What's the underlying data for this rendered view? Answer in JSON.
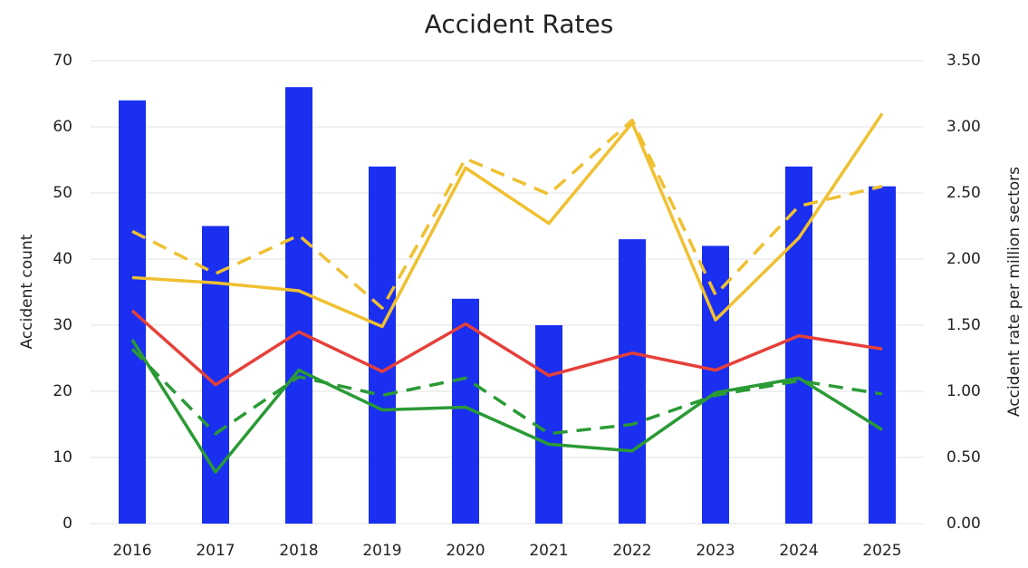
{
  "chart_data": {
    "type": "bar-line",
    "title": "Accident Rates",
    "y_label": "Accident count",
    "y2_label": "Accident rate per million sectors",
    "categories": [
      "2016",
      "2017",
      "2018",
      "2019",
      "2020",
      "2021",
      "2022",
      "2023",
      "2024",
      "2025"
    ],
    "ylim": [
      0,
      70
    ],
    "yticks": [
      0,
      10,
      20,
      30,
      40,
      50,
      60,
      70
    ],
    "y2lim": [
      0,
      3.5
    ],
    "y2ticks": [
      {
        "value": 0,
        "label": "0.00"
      },
      {
        "value": 0.5,
        "label": "0.50"
      },
      {
        "value": 1,
        "label": "1.00"
      },
      {
        "value": 1.5,
        "label": "1.50"
      },
      {
        "value": 2,
        "label": "2.00"
      },
      {
        "value": 2.5,
        "label": "2.50"
      },
      {
        "value": 3,
        "label": "3.00"
      },
      {
        "value": 3.5,
        "label": "3.50"
      }
    ],
    "grid": true,
    "series": [
      {
        "type": "bar",
        "color": "#1a2ff0",
        "values": [
          64,
          45,
          66,
          54,
          34,
          30,
          43,
          42,
          54,
          51
        ]
      },
      {
        "type": "line",
        "axis": "y2",
        "color": "#f0c030",
        "dashed": false,
        "values": [
          1.86,
          1.82,
          1.76,
          1.49,
          2.69,
          2.27,
          3.03,
          1.54,
          2.16,
          3.1
        ]
      },
      {
        "type": "line",
        "axis": "y2",
        "color": "#f0c030",
        "dashed": true,
        "values": [
          2.21,
          1.89,
          2.18,
          1.63,
          2.76,
          2.49,
          3.05,
          1.73,
          2.4,
          2.55
        ]
      },
      {
        "type": "line",
        "axis": "y2",
        "color": "#e5403a",
        "dashed": false,
        "values": [
          1.61,
          1.05,
          1.45,
          1.15,
          1.51,
          1.12,
          1.29,
          1.16,
          1.42,
          1.32
        ]
      },
      {
        "type": "line",
        "axis": "y2",
        "color": "#2a9a35",
        "dashed": false,
        "values": [
          1.39,
          0.39,
          1.16,
          0.86,
          0.88,
          0.6,
          0.55,
          0.99,
          1.1,
          0.71
        ]
      },
      {
        "type": "line",
        "axis": "y2",
        "color": "#2a9a35",
        "dashed": true,
        "values": [
          1.32,
          0.68,
          1.11,
          0.97,
          1.1,
          0.68,
          0.75,
          0.97,
          1.08,
          0.98
        ]
      }
    ]
  }
}
